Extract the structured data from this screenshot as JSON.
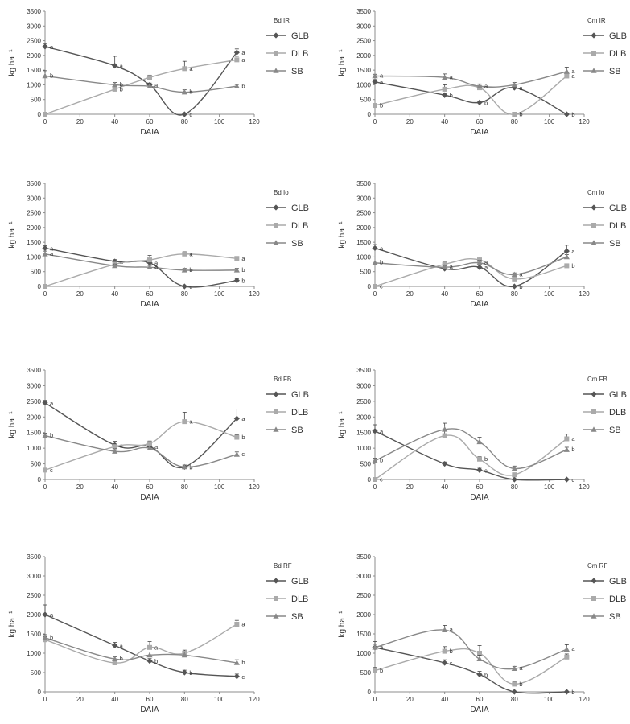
{
  "figure": {
    "colors": {
      "GLB": "#555555",
      "DLB": "#aaaaaa",
      "SB": "#888888",
      "axis": "#8c8c8c",
      "text": "#333333"
    }
  },
  "chart_data": [
    {
      "type": "line",
      "title": "Bd IR",
      "xlabel": "DAIA",
      "ylabel": "kg ha⁻¹",
      "xlim": [
        0,
        120
      ],
      "ylim": [
        0,
        3500
      ],
      "x_ticks": [
        "0",
        "20",
        "40",
        "60",
        "80",
        "100",
        "120"
      ],
      "y_ticks": [
        "0",
        "500",
        "1000",
        "1500",
        "2000",
        "2500",
        "3000",
        "3500"
      ],
      "legend": "right",
      "series": [
        {
          "name": "GLB",
          "marker": "diamond",
          "x": [
            0,
            40,
            60,
            80,
            110
          ],
          "y": [
            2300,
            1650,
            1000,
            0,
            2100
          ],
          "labels": [
            "a",
            "a",
            "a",
            "c",
            "a"
          ],
          "err": [
            100,
            320,
            60,
            0,
            120
          ]
        },
        {
          "name": "DLB",
          "marker": "square",
          "x": [
            0,
            40,
            60,
            80,
            110
          ],
          "y": [
            0,
            850,
            1250,
            1550,
            1850
          ],
          "labels": [
            "",
            "b",
            "",
            "a",
            "a"
          ],
          "err": [
            0,
            60,
            80,
            250,
            120
          ]
        },
        {
          "name": "SB",
          "marker": "triangle",
          "x": [
            0,
            40,
            60,
            80,
            110
          ],
          "y": [
            1300,
            1000,
            950,
            750,
            950
          ],
          "labels": [
            "b",
            "b",
            "",
            "b",
            "b"
          ],
          "err": [
            180,
            80,
            80,
            80,
            60
          ]
        }
      ]
    },
    {
      "type": "line",
      "title": "Cm IR",
      "xlabel": "DAIA",
      "ylabel": "kg ha⁻¹",
      "xlim": [
        0,
        120
      ],
      "ylim": [
        0,
        3500
      ],
      "x_ticks": [
        "0",
        "20",
        "40",
        "60",
        "80",
        "100",
        "120"
      ],
      "y_ticks": [
        "0",
        "500",
        "1000",
        "1500",
        "2000",
        "2500",
        "3000",
        "3500"
      ],
      "legend": "right",
      "series": [
        {
          "name": "GLB",
          "marker": "diamond",
          "x": [
            0,
            40,
            60,
            80,
            110
          ],
          "y": [
            1100,
            650,
            400,
            900,
            0
          ],
          "labels": [
            "a",
            "b",
            "b",
            "a",
            "b"
          ],
          "err": [
            80,
            60,
            40,
            60,
            0
          ]
        },
        {
          "name": "DLB",
          "marker": "square",
          "x": [
            0,
            40,
            60,
            80,
            110
          ],
          "y": [
            300,
            850,
            900,
            0,
            1300
          ],
          "labels": [
            "b",
            "",
            "",
            "b",
            "a"
          ],
          "err": [
            40,
            150,
            80,
            0,
            100
          ]
        },
        {
          "name": "SB",
          "marker": "triangle",
          "x": [
            0,
            40,
            60,
            80,
            110
          ],
          "y": [
            1300,
            1250,
            950,
            1000,
            1450
          ],
          "labels": [
            "a",
            "a",
            "a",
            "",
            "a"
          ],
          "err": [
            60,
            120,
            80,
            80,
            150
          ]
        }
      ]
    },
    {
      "type": "line",
      "title": "Bd Io",
      "xlabel": "DAIA",
      "ylabel": "kg ha⁻¹",
      "xlim": [
        0,
        120
      ],
      "ylim": [
        0,
        3500
      ],
      "x_ticks": [
        "0",
        "20",
        "40",
        "60",
        "80",
        "100",
        "120"
      ],
      "y_ticks": [
        "0",
        "500",
        "1000",
        "1500",
        "2000",
        "2500",
        "3000",
        "3500"
      ],
      "legend": "right",
      "series": [
        {
          "name": "GLB",
          "marker": "diamond",
          "x": [
            0,
            40,
            60,
            80,
            110
          ],
          "y": [
            1300,
            850,
            800,
            0,
            200
          ],
          "labels": [
            "a",
            "a",
            "a",
            "c",
            "b"
          ],
          "err": [
            80,
            60,
            60,
            0,
            60
          ]
        },
        {
          "name": "DLB",
          "marker": "square",
          "x": [
            0,
            40,
            60,
            80,
            110
          ],
          "y": [
            0,
            750,
            900,
            1100,
            950
          ],
          "labels": [
            "",
            "",
            "",
            "a",
            "a"
          ],
          "err": [
            0,
            60,
            150,
            80,
            60
          ]
        },
        {
          "name": "SB",
          "marker": "triangle",
          "x": [
            0,
            40,
            60,
            80,
            110
          ],
          "y": [
            1100,
            700,
            650,
            550,
            550
          ],
          "labels": [
            "a",
            "",
            "a",
            "b",
            "b"
          ],
          "err": [
            100,
            60,
            60,
            60,
            60
          ]
        }
      ]
    },
    {
      "type": "line",
      "title": "Cm Io",
      "xlabel": "DAIA",
      "ylabel": "kg ha⁻¹",
      "xlim": [
        0,
        120
      ],
      "ylim": [
        0,
        3500
      ],
      "x_ticks": [
        "0",
        "20",
        "40",
        "60",
        "80",
        "100",
        "120"
      ],
      "y_ticks": [
        "0",
        "500",
        "1000",
        "1500",
        "2000",
        "2500",
        "3000",
        "3500"
      ],
      "legend": "right",
      "series": [
        {
          "name": "GLB",
          "marker": "diamond",
          "x": [
            0,
            40,
            60,
            80,
            110
          ],
          "y": [
            1300,
            600,
            650,
            0,
            1200
          ],
          "labels": [
            "a",
            "",
            "a",
            "b",
            "a"
          ],
          "err": [
            120,
            50,
            80,
            0,
            200
          ]
        },
        {
          "name": "DLB",
          "marker": "square",
          "x": [
            0,
            40,
            60,
            80,
            110
          ],
          "y": [
            0,
            750,
            900,
            250,
            700
          ],
          "labels": [
            "c",
            "",
            "",
            "",
            "b"
          ],
          "err": [
            0,
            80,
            100,
            60,
            60
          ]
        },
        {
          "name": "SB",
          "marker": "triangle",
          "x": [
            0,
            40,
            60,
            80,
            110
          ],
          "y": [
            800,
            650,
            800,
            400,
            1000
          ],
          "labels": [
            "b",
            "a",
            "a",
            "a",
            ""
          ],
          "err": [
            60,
            60,
            80,
            60,
            80
          ]
        }
      ]
    },
    {
      "type": "line",
      "title": "Bd FB",
      "xlabel": "DAIA",
      "ylabel": "kg ha⁻¹",
      "xlim": [
        0,
        120
      ],
      "ylim": [
        0,
        3500
      ],
      "x_ticks": [
        "0",
        "20",
        "40",
        "60",
        "80",
        "100",
        "120"
      ],
      "y_ticks": [
        "0",
        "500",
        "1000",
        "1500",
        "2000",
        "2500",
        "3000",
        "3500"
      ],
      "legend": "right",
      "series": [
        {
          "name": "GLB",
          "marker": "diamond",
          "x": [
            0,
            40,
            60,
            80,
            110
          ],
          "y": [
            2450,
            1100,
            1050,
            400,
            1950
          ],
          "labels": [
            "a",
            "a",
            "a",
            "b",
            "a"
          ],
          "err": [
            80,
            120,
            80,
            60,
            300
          ]
        },
        {
          "name": "DLB",
          "marker": "square",
          "x": [
            0,
            40,
            60,
            80,
            110
          ],
          "y": [
            300,
            1050,
            1150,
            1850,
            1350
          ],
          "labels": [
            "c",
            "",
            "",
            "a",
            "b"
          ],
          "err": [
            60,
            80,
            80,
            300,
            80
          ]
        },
        {
          "name": "SB",
          "marker": "triangle",
          "x": [
            0,
            40,
            60,
            80,
            110
          ],
          "y": [
            1400,
            900,
            1000,
            400,
            800
          ],
          "labels": [
            "b",
            "",
            "",
            "",
            "c"
          ],
          "err": [
            80,
            80,
            60,
            60,
            80
          ]
        }
      ]
    },
    {
      "type": "line",
      "title": "Cm FB",
      "xlabel": "DAIA",
      "ylabel": "kg ha⁻¹",
      "xlim": [
        0,
        120
      ],
      "ylim": [
        0,
        3500
      ],
      "x_ticks": [
        "0",
        "20",
        "40",
        "60",
        "80",
        "100",
        "120"
      ],
      "y_ticks": [
        "0",
        "500",
        "1000",
        "1500",
        "2000",
        "2500",
        "3000",
        "3500"
      ],
      "legend": "right",
      "series": [
        {
          "name": "GLB",
          "marker": "diamond",
          "x": [
            0,
            40,
            60,
            80,
            110
          ],
          "y": [
            1550,
            500,
            300,
            0,
            0
          ],
          "labels": [
            "a",
            "",
            "c",
            "",
            "c"
          ],
          "err": [
            200,
            60,
            60,
            0,
            0
          ]
        },
        {
          "name": "DLB",
          "marker": "square",
          "x": [
            0,
            40,
            60,
            80,
            110
          ],
          "y": [
            0,
            1400,
            650,
            150,
            1300
          ],
          "labels": [
            "c",
            "",
            "b",
            "",
            "a"
          ],
          "err": [
            0,
            150,
            80,
            60,
            150
          ]
        },
        {
          "name": "SB",
          "marker": "triangle",
          "x": [
            0,
            40,
            60,
            80,
            110
          ],
          "y": [
            600,
            1600,
            1200,
            350,
            950
          ],
          "labels": [
            "b",
            "",
            "",
            "",
            "b"
          ],
          "err": [
            80,
            200,
            150,
            80,
            80
          ]
        }
      ]
    },
    {
      "type": "line",
      "title": "Bd RF",
      "xlabel": "DAIA",
      "ylabel": "kg ha⁻¹",
      "xlim": [
        0,
        120
      ],
      "ylim": [
        0,
        3500
      ],
      "x_ticks": [
        "0",
        "20",
        "40",
        "60",
        "80",
        "100",
        "120"
      ],
      "y_ticks": [
        "0",
        "500",
        "1000",
        "1500",
        "2000",
        "2500",
        "3000",
        "3500"
      ],
      "legend": "right",
      "series": [
        {
          "name": "GLB",
          "marker": "diamond",
          "x": [
            0,
            40,
            60,
            80,
            110
          ],
          "y": [
            2000,
            1200,
            800,
            500,
            400
          ],
          "labels": [
            "a",
            "a",
            "b",
            "b",
            "c"
          ],
          "err": [
            250,
            80,
            60,
            60,
            60
          ]
        },
        {
          "name": "DLB",
          "marker": "square",
          "x": [
            0,
            40,
            60,
            80,
            110
          ],
          "y": [
            1350,
            750,
            1150,
            1000,
            1750
          ],
          "labels": [
            "",
            "",
            "a",
            "",
            "a"
          ],
          "err": [
            80,
            60,
            150,
            80,
            100
          ]
        },
        {
          "name": "SB",
          "marker": "triangle",
          "x": [
            0,
            40,
            60,
            80,
            110
          ],
          "y": [
            1400,
            850,
            950,
            950,
            750
          ],
          "labels": [
            "b",
            "b",
            "",
            "",
            "b"
          ],
          "err": [
            80,
            60,
            80,
            80,
            80
          ]
        }
      ]
    },
    {
      "type": "line",
      "title": "Cm RF",
      "xlabel": "DAIA",
      "ylabel": "kg ha⁻¹",
      "xlim": [
        0,
        120
      ],
      "ylim": [
        0,
        3500
      ],
      "x_ticks": [
        "0",
        "20",
        "40",
        "60",
        "80",
        "100",
        "120"
      ],
      "y_ticks": [
        "0",
        "500",
        "1000",
        "1500",
        "2000",
        "2500",
        "3000",
        "3500"
      ],
      "legend": "right",
      "series": [
        {
          "name": "GLB",
          "marker": "diamond",
          "x": [
            0,
            40,
            60,
            80,
            110
          ],
          "y": [
            1150,
            750,
            450,
            0,
            0
          ],
          "labels": [
            "",
            "c",
            "b",
            "",
            "b"
          ],
          "err": [
            80,
            80,
            80,
            0,
            0
          ]
        },
        {
          "name": "DLB",
          "marker": "square",
          "x": [
            0,
            40,
            60,
            80,
            110
          ],
          "y": [
            550,
            1050,
            1000,
            200,
            900
          ],
          "labels": [
            "b",
            "b",
            "",
            "b",
            ""
          ],
          "err": [
            80,
            120,
            200,
            60,
            80
          ]
        },
        {
          "name": "SB",
          "marker": "triangle",
          "x": [
            0,
            40,
            60,
            80,
            110
          ],
          "y": [
            1150,
            1600,
            850,
            600,
            1100
          ],
          "labels": [
            "a",
            "a",
            "",
            "a",
            "a"
          ],
          "err": [
            150,
            120,
            100,
            60,
            120
          ]
        }
      ]
    }
  ]
}
